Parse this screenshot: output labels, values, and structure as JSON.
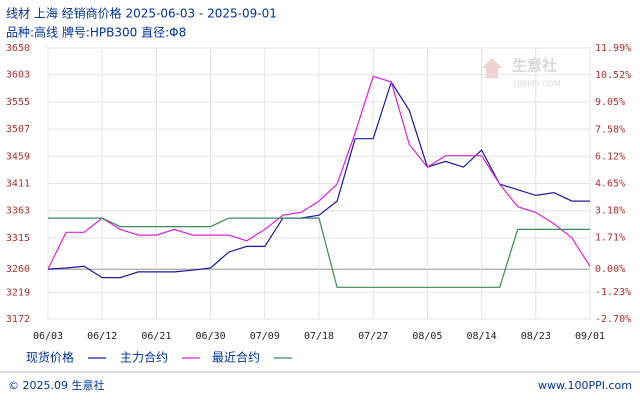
{
  "chart_data": {
    "type": "line",
    "title": "线材 上海 经销商价格 2025-06-03 - 2025-09-01",
    "subtitle": "品种:高线 牌号:HPB300 直径:Φ8",
    "categories": [
      "06/03",
      null,
      null,
      "06/12",
      null,
      null,
      "06/21",
      null,
      null,
      "06/30",
      null,
      null,
      "07/09",
      null,
      null,
      "07/18",
      null,
      null,
      "07/27",
      null,
      null,
      "08/05",
      null,
      null,
      "08/14",
      null,
      null,
      "08/23",
      null,
      null,
      "09/01"
    ],
    "series": [
      {
        "name": "现货价格",
        "color": "#1a1aa0",
        "values": [
          3260,
          3262,
          3265,
          3245,
          3245,
          3255,
          3255,
          3255,
          3258,
          3262,
          3290,
          3300,
          3300,
          3350,
          3350,
          3355,
          3380,
          3490,
          3490,
          3590,
          3540,
          3440,
          3450,
          3440,
          3470,
          3410,
          3400,
          3390,
          3395,
          3380,
          3380
        ]
      },
      {
        "name": "主力合约",
        "color": "#e020d8",
        "values": [
          3260,
          3325,
          3325,
          3350,
          3330,
          3320,
          3320,
          3330,
          3320,
          3320,
          3320,
          3310,
          3330,
          3355,
          3360,
          3380,
          3410,
          3500,
          3600,
          3590,
          3480,
          3440,
          3460,
          3460,
          3460,
          3410,
          3370,
          3360,
          3340,
          3315,
          3265
        ]
      },
      {
        "name": "最近合约",
        "color": "#3a8a5a",
        "values": [
          3350,
          3350,
          3350,
          3350,
          3335,
          3335,
          3335,
          3335,
          3335,
          3335,
          3350,
          3350,
          3350,
          3350,
          3350,
          3350,
          3228,
          3228,
          3228,
          3228,
          3228,
          3228,
          3228,
          3228,
          3228,
          3228,
          3330,
          3330,
          3330,
          3330,
          3330
        ]
      }
    ],
    "ylim": [
      3172,
      3650
    ],
    "yticks": [
      3172,
      3219,
      3260,
      3315,
      3363,
      3411,
      3459,
      3507,
      3555,
      3603,
      3650
    ],
    "y2lim": [
      -2.7,
      11.99
    ],
    "y2ticks": [
      {
        "value": -2.7,
        "label": "-2.70%"
      },
      {
        "value": -1.23,
        "label": "-1.23%"
      },
      {
        "value": 0,
        "label": "0.00%"
      },
      {
        "value": 1.71,
        "label": "1.71%"
      },
      {
        "value": 3.18,
        "label": "3.18%"
      },
      {
        "value": 4.65,
        "label": "4.65%"
      },
      {
        "value": 6.12,
        "label": "6.12%"
      },
      {
        "value": 7.58,
        "label": "7.58%"
      },
      {
        "value": 9.05,
        "label": "9.05%"
      },
      {
        "value": 10.52,
        "label": "10.52%"
      },
      {
        "value": 11.99,
        "label": "11.99%"
      }
    ],
    "grid": true
  },
  "watermark": {
    "name": "生意社",
    "site": "100PPI.COM"
  },
  "footer": {
    "copyright": "© 2025.09 生意社",
    "site": "www.100PPI.com"
  }
}
